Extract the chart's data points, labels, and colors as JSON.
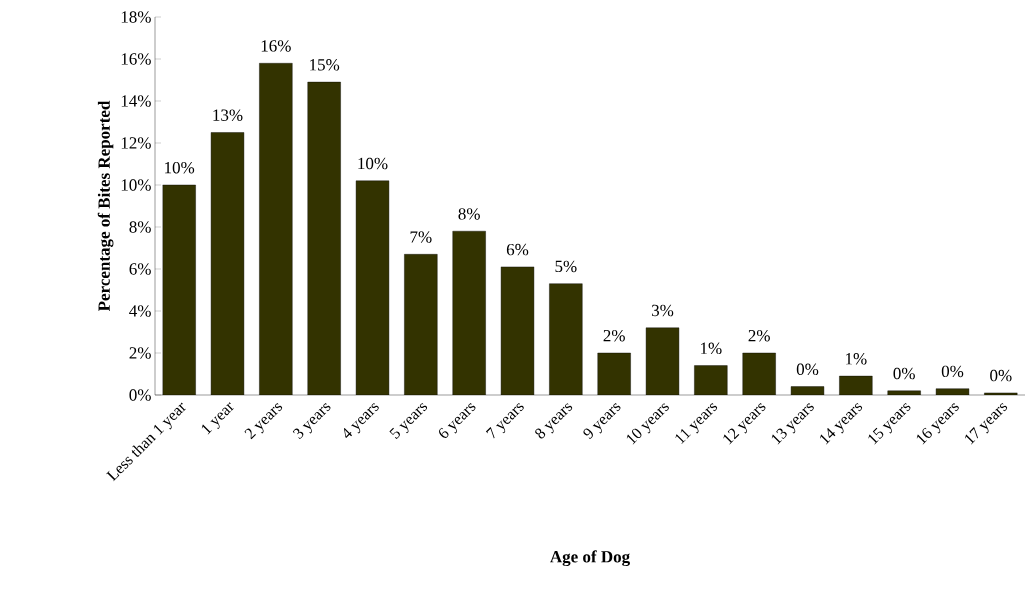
{
  "chart_data": {
    "type": "bar",
    "xlabel": "Age of Dog",
    "ylabel": "Percentage of Bites Reported",
    "categories": [
      "Less than 1 year",
      "1 year",
      "2 years",
      "3 years",
      "4 years",
      "5 years",
      "6 years",
      "7 years",
      "8 years",
      "9 years",
      "10 years",
      "11 years",
      "12 years",
      "13 years",
      "14 years",
      "15 years",
      "16 years",
      "17 years"
    ],
    "values": [
      10.0,
      12.5,
      15.8,
      14.9,
      10.2,
      6.7,
      7.8,
      6.1,
      5.3,
      2.0,
      3.2,
      1.4,
      2.0,
      0.4,
      0.9,
      0.2,
      0.3,
      0.1
    ],
    "value_labels": [
      "10%",
      "13%",
      "16%",
      "15%",
      "10%",
      "7%",
      "8%",
      "6%",
      "5%",
      "2%",
      "3%",
      "1%",
      "2%",
      "0%",
      "1%",
      "0%",
      "0%",
      "0%"
    ],
    "color": "#333300",
    "ylim": [
      0,
      18
    ],
    "yticks": [
      {
        "value": 0,
        "label": "0%"
      },
      {
        "value": 2,
        "label": "2%"
      },
      {
        "value": 4,
        "label": "4%"
      },
      {
        "value": 6,
        "label": "6%"
      },
      {
        "value": 8,
        "label": "8%"
      },
      {
        "value": 10,
        "label": "10%"
      },
      {
        "value": 12,
        "label": "12%"
      },
      {
        "value": 14,
        "label": "14%"
      },
      {
        "value": 16,
        "label": "16%"
      },
      {
        "value": 18,
        "label": "18%"
      }
    ]
  }
}
